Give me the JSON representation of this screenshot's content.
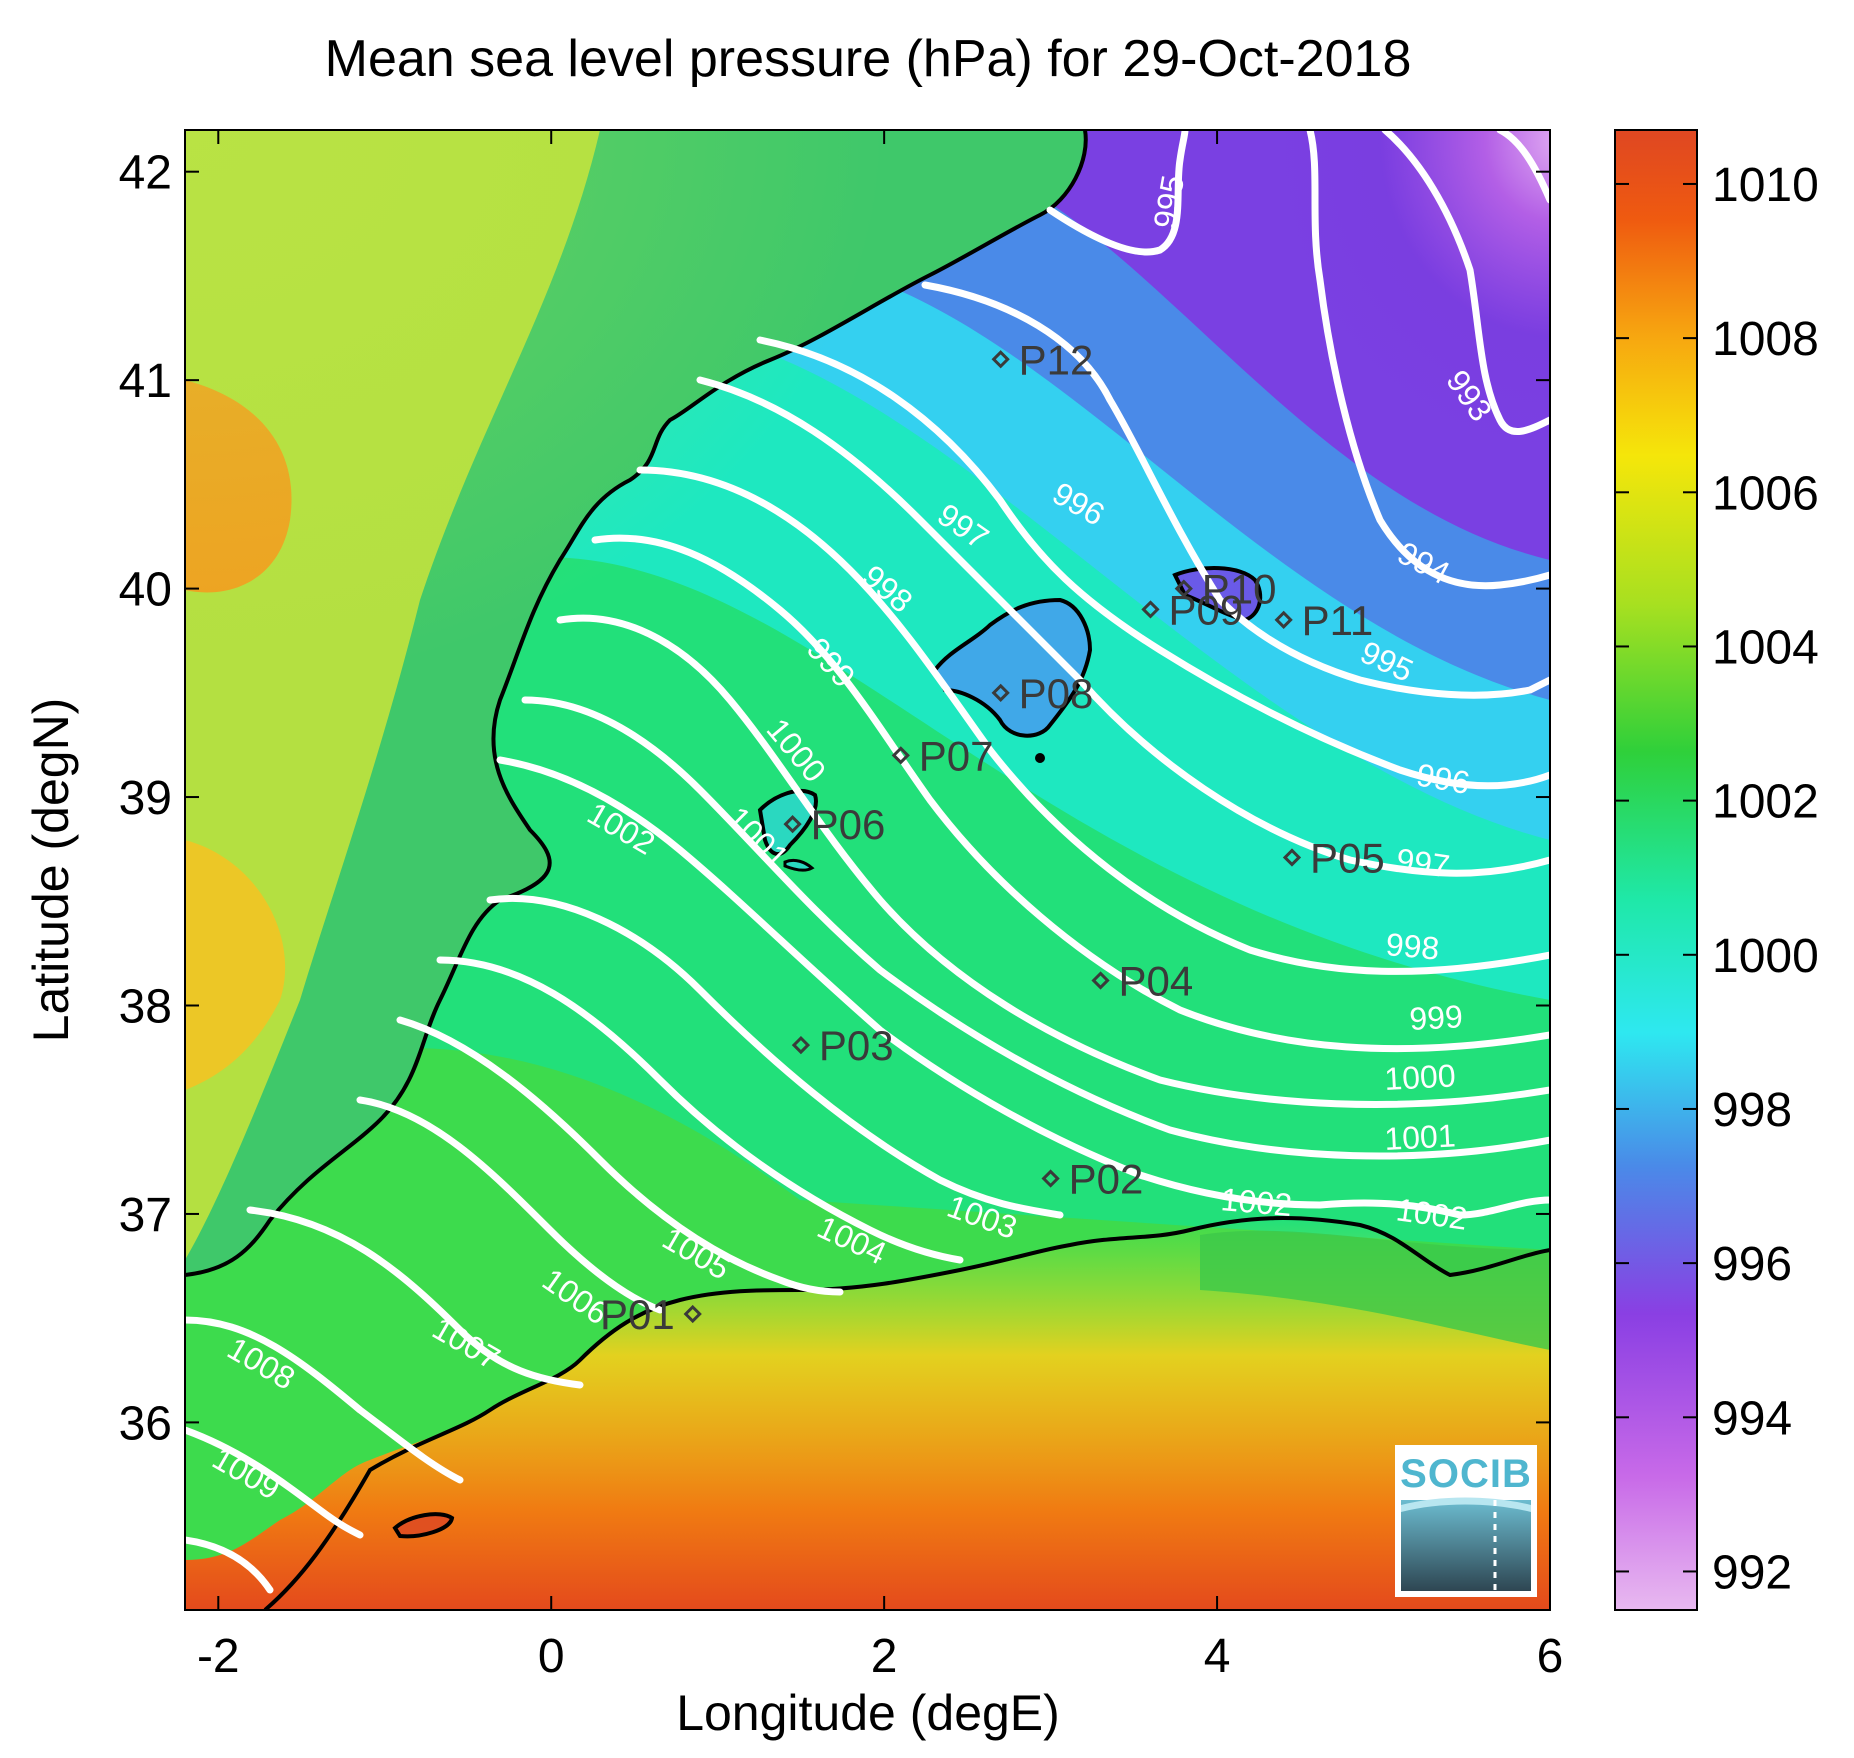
{
  "title": "Mean sea level pressure (hPa) for 29-Oct-2018",
  "x_axis": {
    "label": "Longitude (degE)",
    "ticks": [
      "-2",
      "0",
      "2",
      "4",
      "6"
    ]
  },
  "y_axis": {
    "label": "Latitude (degN)",
    "ticks": [
      "42",
      "41",
      "40",
      "39",
      "38",
      "37",
      "36"
    ]
  },
  "colorbar": {
    "ticks": [
      "1010",
      "1008",
      "1006",
      "1004",
      "1002",
      "1000",
      "998",
      "996",
      "994",
      "992"
    ],
    "colors": [
      "#e8b9f0",
      "#c86ae8",
      "#8a3fe3",
      "#4a8ae8",
      "#2ee8f0",
      "#1fe8a8",
      "#2fd03a",
      "#a8e020",
      "#f5e60a",
      "#f7a710",
      "#ef5a10",
      "#df4722"
    ]
  },
  "map_data": {
    "lon_range": [
      -2.2,
      6.0
    ],
    "lat_range": [
      35.1,
      42.2
    ],
    "stations": [
      {
        "name": "P01",
        "lon": 0.85,
        "lat": 36.52
      },
      {
        "name": "P02",
        "lon": 3.0,
        "lat": 37.17
      },
      {
        "name": "P03",
        "lon": 1.5,
        "lat": 37.81
      },
      {
        "name": "P04",
        "lon": 3.3,
        "lat": 38.12
      },
      {
        "name": "P05",
        "lon": 4.45,
        "lat": 38.71
      },
      {
        "name": "P06",
        "lon": 1.45,
        "lat": 38.87
      },
      {
        "name": "P07",
        "lon": 2.1,
        "lat": 39.2
      },
      {
        "name": "P08",
        "lon": 2.7,
        "lat": 39.5
      },
      {
        "name": "P09",
        "lon": 3.6,
        "lat": 39.9
      },
      {
        "name": "P10",
        "lon": 3.8,
        "lat": 40.0
      },
      {
        "name": "P11",
        "lon": 4.4,
        "lat": 39.85
      },
      {
        "name": "P12",
        "lon": 2.7,
        "lat": 41.1
      }
    ],
    "contour_labels": [
      "995",
      "993",
      "994",
      "995",
      "996",
      "996",
      "997",
      "997",
      "998",
      "998",
      "999",
      "999",
      "1000",
      "1000",
      "1001",
      "1001",
      "1002",
      "1002",
      "1002",
      "1003",
      "1004",
      "1005",
      "1006",
      "1007",
      "1008",
      "1009"
    ]
  },
  "logo_text": "SOCIB"
}
